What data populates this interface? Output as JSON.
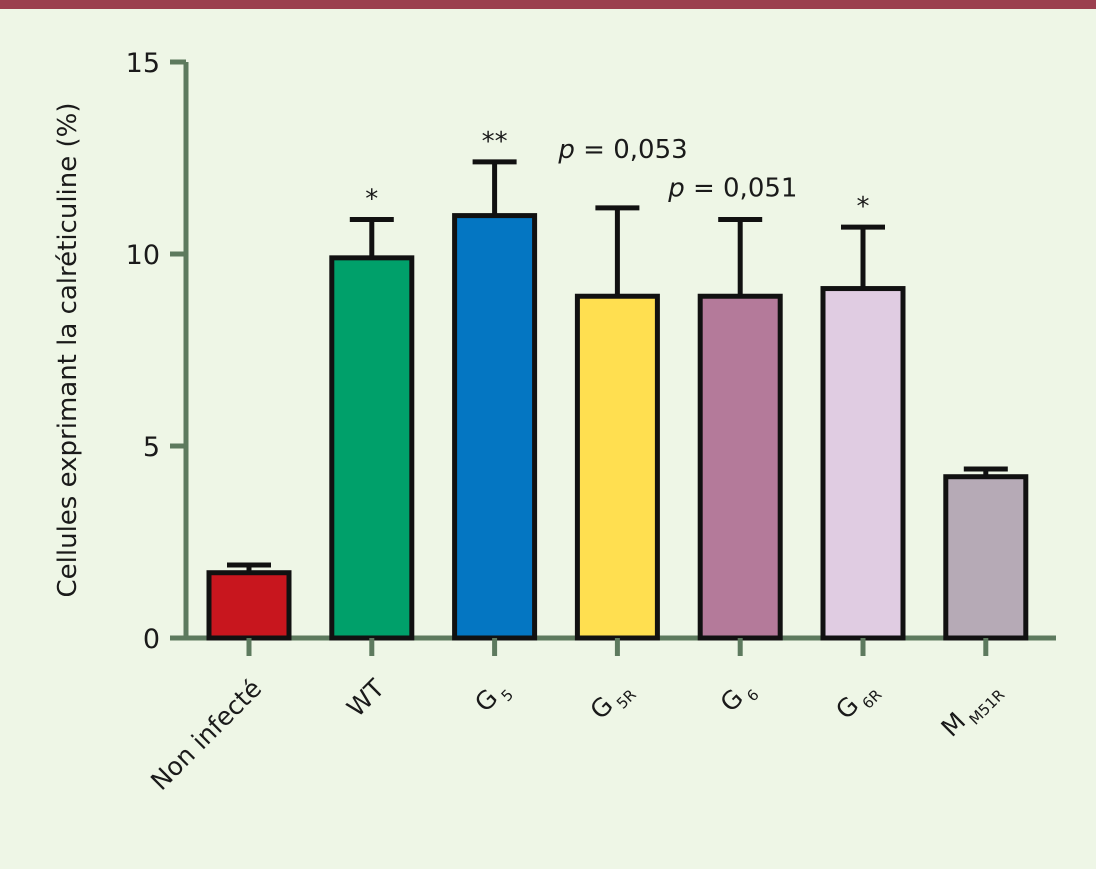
{
  "chart_data": {
    "type": "bar",
    "ylabel": "Cellules exprimant la calréticuline (%)",
    "ylim": [
      0,
      15
    ],
    "yticks": [
      0,
      5,
      10,
      15
    ],
    "categories": [
      {
        "label": "Non infecté",
        "sub": ""
      },
      {
        "label": "WT",
        "sub": ""
      },
      {
        "label": "G",
        "sub": "5"
      },
      {
        "label": "G",
        "sub": "5R"
      },
      {
        "label": "G",
        "sub": "6"
      },
      {
        "label": "G",
        "sub": "6R"
      },
      {
        "label": "M",
        "sub": "M51R"
      }
    ],
    "values": [
      1.7,
      9.9,
      11.0,
      8.9,
      8.9,
      9.1,
      4.2
    ],
    "error_upper": [
      1.9,
      10.9,
      12.4,
      11.2,
      10.9,
      10.7,
      4.4
    ],
    "annotations": [
      {
        "category_index": 1,
        "p_prefix": "",
        "text": "*"
      },
      {
        "category_index": 2,
        "p_prefix": "",
        "text": "**"
      },
      {
        "category_index": 3,
        "p_prefix": "p",
        "text": " = 0,053"
      },
      {
        "category_index": 4,
        "p_prefix": "p",
        "text": " = 0,051"
      },
      {
        "category_index": 5,
        "p_prefix": "",
        "text": "*"
      }
    ],
    "colors": [
      "#c8161e",
      "#00a06a",
      "#0476c2",
      "#ffdf50",
      "#b47a9a",
      "#e0cce2",
      "#b6aab6"
    ],
    "axis_color": "#5d7a5e",
    "background": "#eef6e6",
    "top_rule_color": "#9b3f4e"
  }
}
